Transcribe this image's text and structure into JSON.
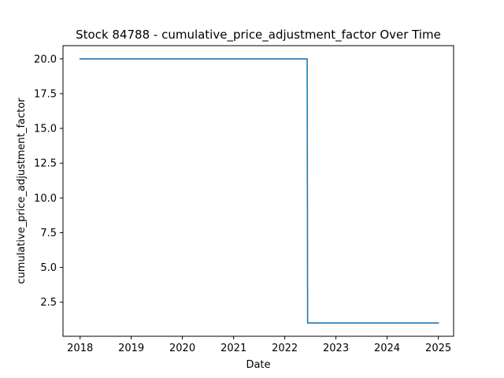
{
  "chart_data": {
    "type": "line",
    "title": "Stock 84788 - cumulative_price_adjustment_factor Over Time",
    "xlabel": "Date",
    "ylabel": "cumulative_price_adjustment_factor",
    "x_ticks": [
      "2018",
      "2019",
      "2020",
      "2021",
      "2022",
      "2023",
      "2024",
      "2025"
    ],
    "y_ticks": [
      "2.5",
      "5.0",
      "7.5",
      "10.0",
      "12.5",
      "15.0",
      "17.5",
      "20.0"
    ],
    "xlim": [
      "2017-09-01",
      "2025-04-20"
    ],
    "ylim": [
      0.05,
      20.95
    ],
    "grid": false,
    "series": [
      {
        "color": "#1f77b4",
        "points": [
          {
            "x": "2018-01-01",
            "y": 20.0
          },
          {
            "x": "2022-06-10",
            "y": 20.0
          },
          {
            "x": "2022-06-13",
            "y": 1.0
          },
          {
            "x": "2025-01-01",
            "y": 1.0
          }
        ]
      }
    ]
  }
}
